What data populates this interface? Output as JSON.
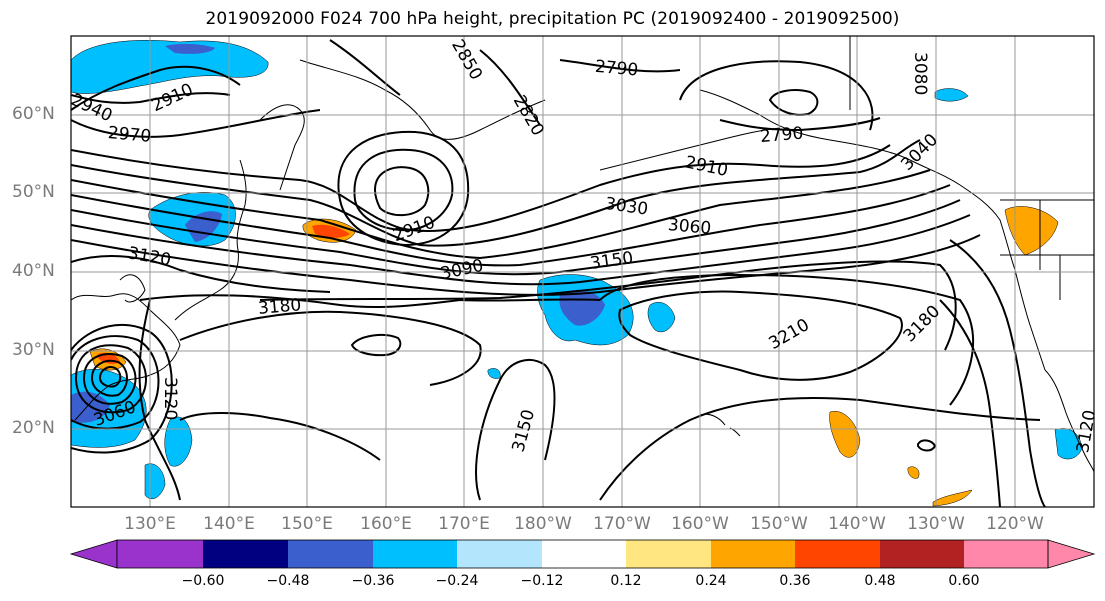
{
  "title": "2019092000 F024 700 hPa height, precipitation PC (2019092400 - 2019092500)",
  "lat_labels": [
    "60°N",
    "50°N",
    "40°N",
    "30°N",
    "20°N"
  ],
  "lon_labels": [
    "130°E",
    "140°E",
    "150°E",
    "160°E",
    "170°E",
    "180°W",
    "170°W",
    "160°W",
    "150°W",
    "140°W",
    "130°W",
    "120°W"
  ],
  "contour_labels": [
    "2910",
    "2940",
    "2970",
    "2850",
    "2790",
    "2820",
    "2790",
    "3080",
    "3040",
    "2910",
    "3030",
    "3060",
    "2910",
    "3090",
    "3150",
    "3120",
    "3180",
    "3210",
    "3180",
    "3060",
    "3120",
    "3150",
    "3120"
  ],
  "colorbar": {
    "ticks": [
      "−0.60",
      "−0.48",
      "−0.36",
      "−0.24",
      "−0.12",
      "0.12",
      "0.24",
      "0.36",
      "0.48",
      "0.60"
    ],
    "colors": [
      "#9933cc",
      "#000080",
      "#3b5fcd",
      "#00bfff",
      "#b3e5fc",
      "#ffffff",
      "#ffe680",
      "#ffa500",
      "#ff4500",
      "#b22222",
      "#ff88aa"
    ]
  },
  "colors": {
    "positive_moderate": "#ffa500",
    "positive_strong": "#ff4500",
    "negative_light": "#00bfff",
    "negative_moderate": "#3b5fcd",
    "negative_weak": "#b3e5fc",
    "contour": "#000000",
    "grid": "#999999"
  }
}
